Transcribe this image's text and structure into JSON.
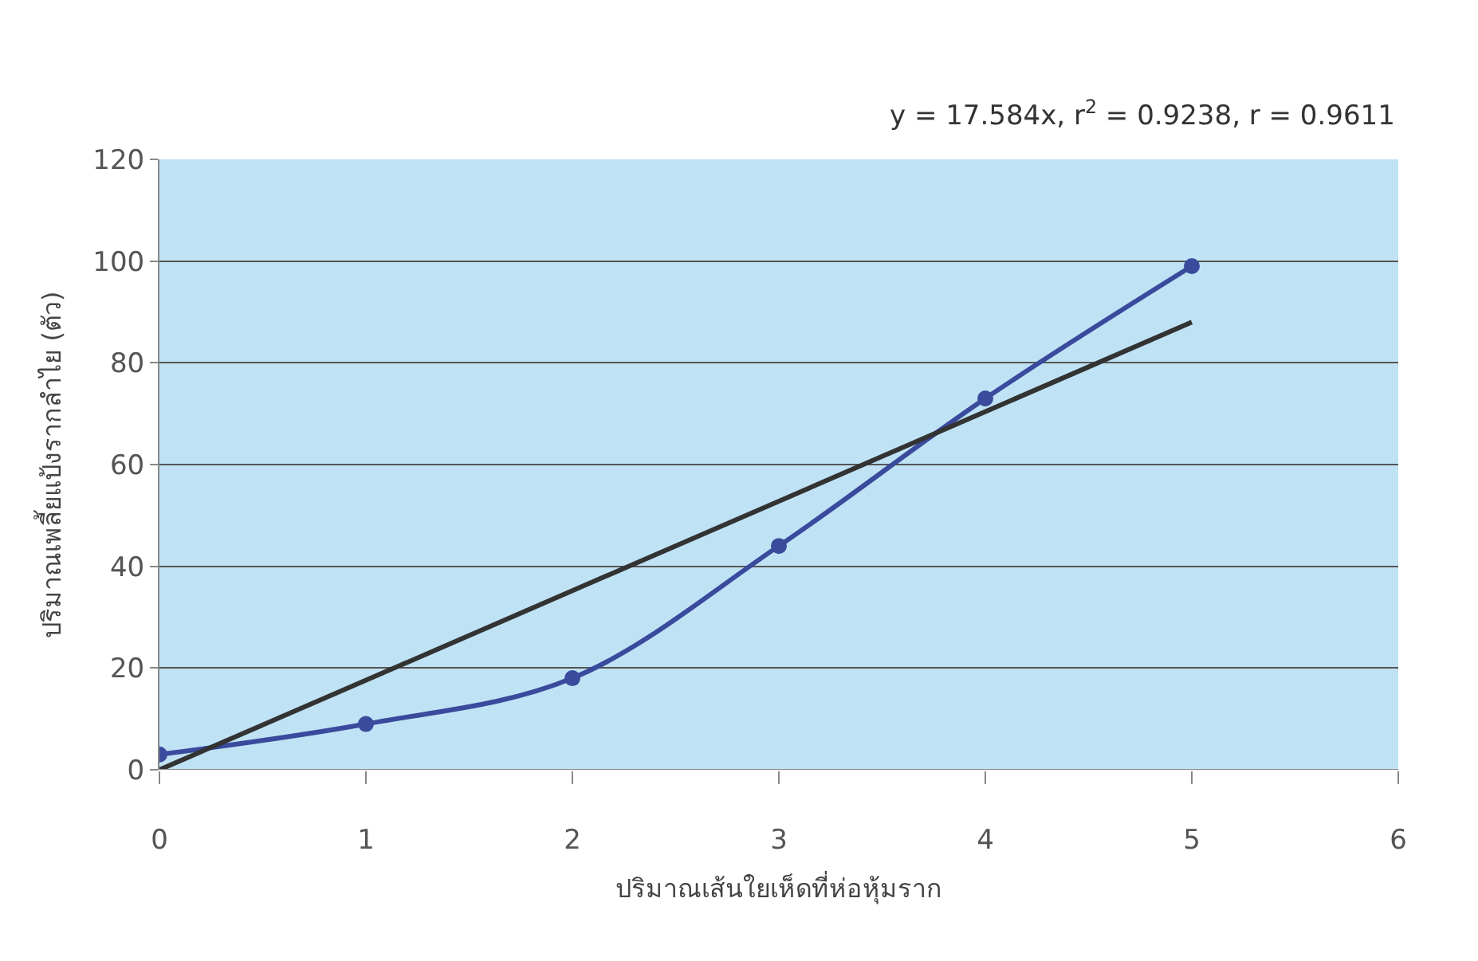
{
  "chart_data": {
    "type": "line",
    "xlabel": "ปริมาณเส้นใยเห็ดที่ห่อหุ้มราก",
    "ylabel": "ปริมาณเพลี้ยแป้งรากลำไย (ตัว)",
    "annotations": [
      "y = 17.584x, r$^{2}$ = 0.9238, r = 0.9611"
    ],
    "x": [
      0,
      1,
      2,
      3,
      4,
      5
    ],
    "series": [
      {
        "color": "#3a4a9c",
        "values": [
          3,
          9,
          18,
          44,
          73,
          99
        ],
        "marker": "circle"
      },
      {
        "color": "#333333",
        "x": [
          0,
          5
        ],
        "values": [
          0,
          88
        ],
        "marker": "none"
      }
    ],
    "xlim": [
      0,
      6
    ],
    "xticks": [
      0,
      1,
      2,
      3,
      4,
      5,
      6
    ],
    "ylim": [
      0,
      120
    ],
    "yticks": [
      0,
      20,
      40,
      60,
      80,
      100,
      120
    ],
    "grid": "y"
  }
}
